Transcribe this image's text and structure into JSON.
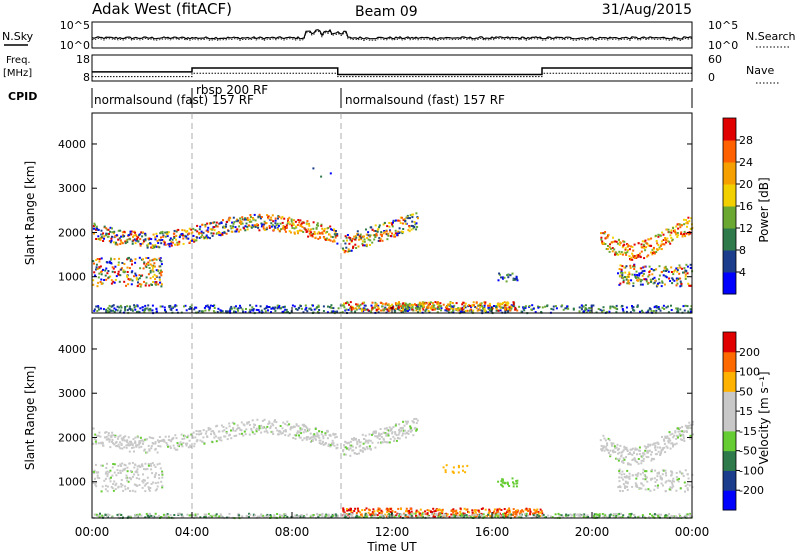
{
  "header": {
    "station": "Adak West (fitACF)",
    "beam": "Beam 09",
    "date": "31/Aug/2015"
  },
  "strip_labels": {
    "nsky": "N.Sky",
    "nsearch": "N.Search",
    "freq_line1": "Freq.",
    "freq_line2": "[MHz]",
    "nave": "Nave",
    "cpid": "CPID"
  },
  "colors": {
    "power_scale": [
      "#0000ff",
      "#1c3c8c",
      "#2e7a4a",
      "#6aa832",
      "#f2d000",
      "#f5a000",
      "#ff6000",
      "#e00000"
    ],
    "velocity_scale": [
      "#e00000",
      "#ff6a00",
      "#ffb300",
      "#c8c8c8",
      "#c8c8c8",
      "#66cc33",
      "#2e7a4a",
      "#1c3c8c",
      "#0000ff"
    ]
  },
  "chart_data": [
    {
      "type": "line",
      "panel": "noise",
      "title": "",
      "series": [
        {
          "name": "N.Sky",
          "values": "noise level (log scale) over 00:00–24:00"
        },
        {
          "name": "N.Search",
          "values": "noise search level (dotted)"
        }
      ],
      "ytick_left": [
        "10^5",
        "10^0"
      ],
      "ytick_right": [
        "10^5",
        "10^0"
      ]
    },
    {
      "type": "line",
      "panel": "freq",
      "series": [
        {
          "name": "Freq.",
          "x": [
            "00:00",
            "04:00",
            "09:50",
            "18:00",
            "24:00"
          ],
          "values": [
            11.5,
            13,
            10.5,
            13,
            13
          ]
        },
        {
          "name": "Nave",
          "x": [
            "00:00",
            "04:00",
            "09:50",
            "18:00",
            "24:00"
          ],
          "values": [
            10,
            18,
            10,
            18,
            18
          ]
        }
      ],
      "ytick_left": [
        "18",
        "8"
      ],
      "ytick_right": [
        "60",
        "0"
      ]
    },
    {
      "type": "table",
      "panel": "cpid",
      "segments": [
        {
          "start": "00:00",
          "end": "04:00",
          "label": "normalsound (fast) 157 RF"
        },
        {
          "start": "04:00",
          "end": "09:50",
          "label": "rbsp 200 RF"
        },
        {
          "start": "09:50",
          "end": "24:00",
          "label": "normalsound (fast) 157 RF"
        }
      ]
    },
    {
      "type": "heatmap",
      "panel": "power",
      "ylabel": "Slant Range [km]",
      "ylim": [
        180,
        4700
      ],
      "yticks": [
        "1000",
        "2000",
        "3000",
        "4000"
      ],
      "colorbar_label": "Power [dB]",
      "colorbar_ticks": [
        "4",
        "8",
        "12",
        "16",
        "20",
        "24",
        "28"
      ],
      "colorbar_range": [
        0,
        32
      ]
    },
    {
      "type": "heatmap",
      "panel": "velocity",
      "ylabel": "Slant Range [km]",
      "ylim": [
        180,
        4700
      ],
      "yticks": [
        "1000",
        "2000",
        "3000",
        "4000"
      ],
      "colorbar_label": "Velocity [m s⁻¹]",
      "colorbar_ticks": [
        "200",
        "100",
        "50",
        "15",
        "-15",
        "-50",
        "-100",
        "-200"
      ],
      "xlabel": "Time UT",
      "xticks": [
        "00:00",
        "04:00",
        "08:00",
        "12:00",
        "16:00",
        "20:00",
        "00:00"
      ],
      "xlim_hours": [
        0,
        24
      ]
    }
  ]
}
